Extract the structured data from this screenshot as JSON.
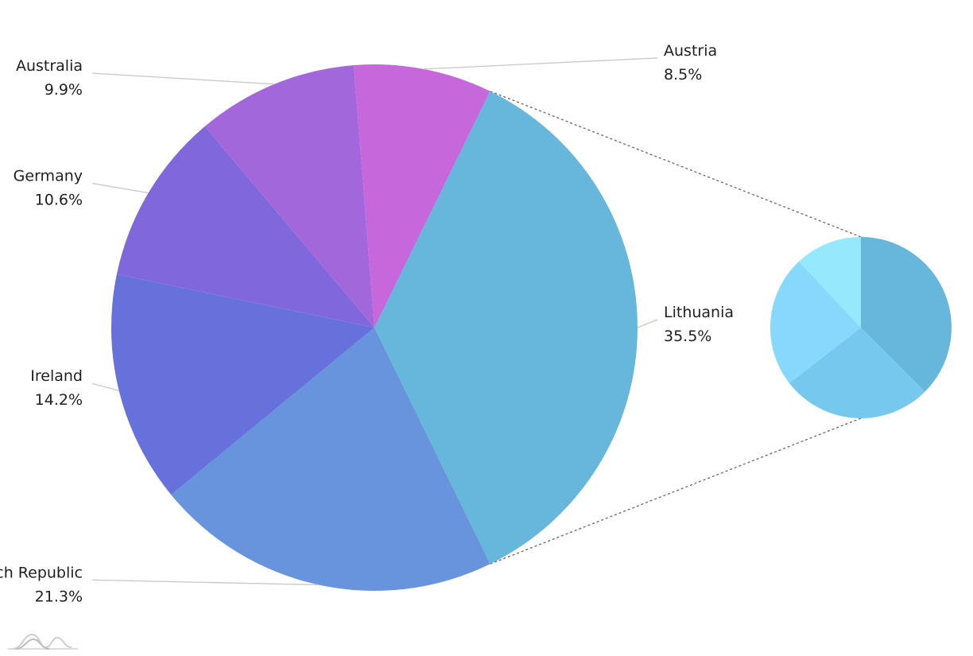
{
  "chart_data": {
    "type": "pie",
    "subtype": "pie-of-pie",
    "title": "",
    "slices": [
      {
        "name": "Lithuania",
        "percent_label": "35.5%",
        "value": 35.5,
        "color": "#67b7dc",
        "has_breakdown": true
      },
      {
        "name": "Czech Republic",
        "percent_label": "21.3%",
        "value": 21.3,
        "color": "#6794dc"
      },
      {
        "name": "Ireland",
        "percent_label": "14.2%",
        "value": 14.2,
        "color": "#6771dc"
      },
      {
        "name": "Germany",
        "percent_label": "10.6%",
        "value": 10.6,
        "color": "#8067dc"
      },
      {
        "name": "Australia",
        "percent_label": "9.9%",
        "value": 9.9,
        "color": "#a367dc"
      },
      {
        "name": "Austria",
        "percent_label": "8.5%",
        "value": 8.5,
        "color": "#c767dc"
      }
    ],
    "breakdown": {
      "of": "Lithuania",
      "slices": [
        {
          "value": 37.5,
          "color": "#67b7dc"
        },
        {
          "value": 27.0,
          "color": "#76c8ef"
        },
        {
          "value": 23.5,
          "color": "#88d8fc"
        },
        {
          "value": 12.0,
          "color": "#96e8fd"
        }
      ]
    },
    "legend": "none",
    "labels": "outside with leader lines"
  },
  "watermark_icon": "chart-logo-icon"
}
